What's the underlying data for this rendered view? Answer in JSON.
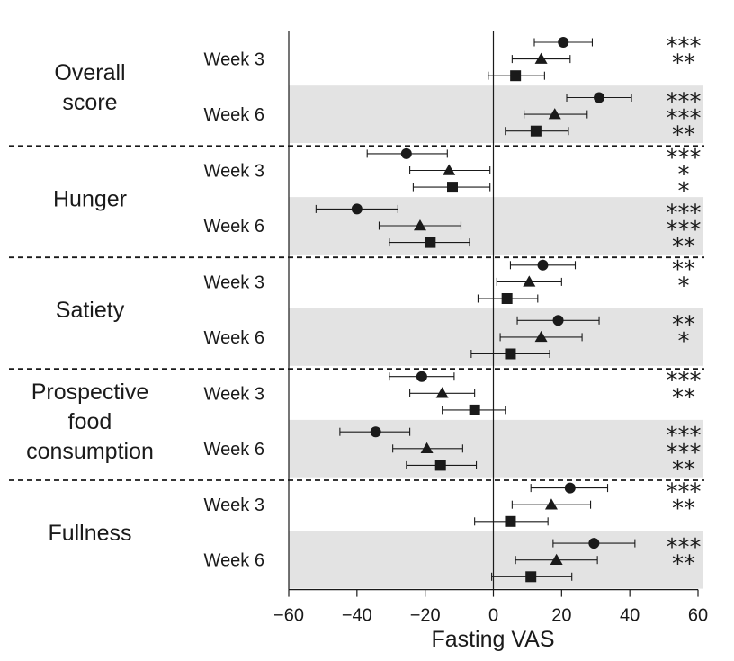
{
  "chart_data": {
    "type": "forest",
    "xlabel": "Fasting VAS",
    "xlim": [
      -60,
      60
    ],
    "xticks": [
      -60,
      -40,
      -20,
      0,
      20,
      40,
      60
    ],
    "xtick_labels": [
      "−60",
      "−40",
      "−20",
      "0",
      "20",
      "40",
      "60"
    ],
    "markers": [
      "circle",
      "triangle",
      "square"
    ],
    "groups": [
      {
        "label_lines": [
          "Overall",
          "score"
        ],
        "weeks": [
          {
            "label": "Week 3",
            "shaded": false,
            "rows": [
              {
                "marker": "circle",
                "est": 20.5,
                "lo": 12,
                "hi": 29,
                "stars": "***"
              },
              {
                "marker": "triangle",
                "est": 14,
                "lo": 5.5,
                "hi": 22.5,
                "stars": "**"
              },
              {
                "marker": "square",
                "est": 6.5,
                "lo": -1.5,
                "hi": 15,
                "stars": ""
              }
            ]
          },
          {
            "label": "Week 6",
            "shaded": true,
            "rows": [
              {
                "marker": "circle",
                "est": 31,
                "lo": 21.5,
                "hi": 40.5,
                "stars": "***"
              },
              {
                "marker": "triangle",
                "est": 18,
                "lo": 9,
                "hi": 27.5,
                "stars": "***"
              },
              {
                "marker": "square",
                "est": 12.5,
                "lo": 3.5,
                "hi": 22,
                "stars": "**"
              }
            ]
          }
        ]
      },
      {
        "label_lines": [
          "Hunger"
        ],
        "weeks": [
          {
            "label": "Week 3",
            "shaded": false,
            "rows": [
              {
                "marker": "circle",
                "est": -25.5,
                "lo": -37,
                "hi": -13.5,
                "stars": "***"
              },
              {
                "marker": "triangle",
                "est": -13,
                "lo": -24.5,
                "hi": -1,
                "stars": "*"
              },
              {
                "marker": "square",
                "est": -12,
                "lo": -23.5,
                "hi": -1,
                "stars": "*"
              }
            ]
          },
          {
            "label": "Week 6",
            "shaded": true,
            "rows": [
              {
                "marker": "circle",
                "est": -40,
                "lo": -52,
                "hi": -28,
                "stars": "***"
              },
              {
                "marker": "triangle",
                "est": -21.5,
                "lo": -33.5,
                "hi": -9.5,
                "stars": "***"
              },
              {
                "marker": "square",
                "est": -18.5,
                "lo": -30.5,
                "hi": -7,
                "stars": "**"
              }
            ]
          }
        ]
      },
      {
        "label_lines": [
          "Satiety"
        ],
        "weeks": [
          {
            "label": "Week 3",
            "shaded": false,
            "rows": [
              {
                "marker": "circle",
                "est": 14.5,
                "lo": 5,
                "hi": 24,
                "stars": "**"
              },
              {
                "marker": "triangle",
                "est": 10.5,
                "lo": 1,
                "hi": 20,
                "stars": "*"
              },
              {
                "marker": "square",
                "est": 4,
                "lo": -4.5,
                "hi": 13,
                "stars": ""
              }
            ]
          },
          {
            "label": "Week 6",
            "shaded": true,
            "rows": [
              {
                "marker": "circle",
                "est": 19,
                "lo": 7,
                "hi": 31,
                "stars": "**"
              },
              {
                "marker": "triangle",
                "est": 14,
                "lo": 2,
                "hi": 26,
                "stars": "*"
              },
              {
                "marker": "square",
                "est": 5,
                "lo": -6.5,
                "hi": 16.5,
                "stars": ""
              }
            ]
          }
        ]
      },
      {
        "label_lines": [
          "Prospective",
          "food",
          "consumption"
        ],
        "weeks": [
          {
            "label": "Week 3",
            "shaded": false,
            "rows": [
              {
                "marker": "circle",
                "est": -21,
                "lo": -30.5,
                "hi": -11.5,
                "stars": "***"
              },
              {
                "marker": "triangle",
                "est": -15,
                "lo": -24.5,
                "hi": -5.5,
                "stars": "**"
              },
              {
                "marker": "square",
                "est": -5.5,
                "lo": -15,
                "hi": 3.5,
                "stars": ""
              }
            ]
          },
          {
            "label": "Week 6",
            "shaded": true,
            "rows": [
              {
                "marker": "circle",
                "est": -34.5,
                "lo": -45,
                "hi": -24.5,
                "stars": "***"
              },
              {
                "marker": "triangle",
                "est": -19.5,
                "lo": -29.5,
                "hi": -9,
                "stars": "***"
              },
              {
                "marker": "square",
                "est": -15.5,
                "lo": -25.5,
                "hi": -5,
                "stars": "**"
              }
            ]
          }
        ]
      },
      {
        "label_lines": [
          "Fullness"
        ],
        "weeks": [
          {
            "label": "Week 3",
            "shaded": false,
            "rows": [
              {
                "marker": "circle",
                "est": 22.5,
                "lo": 11,
                "hi": 33.5,
                "stars": "***"
              },
              {
                "marker": "triangle",
                "est": 17,
                "lo": 5.5,
                "hi": 28.5,
                "stars": "**"
              },
              {
                "marker": "square",
                "est": 5,
                "lo": -5.5,
                "hi": 16,
                "stars": ""
              }
            ]
          },
          {
            "label": "Week 6",
            "shaded": true,
            "rows": [
              {
                "marker": "circle",
                "est": 29.5,
                "lo": 17.5,
                "hi": 41.5,
                "stars": "***"
              },
              {
                "marker": "triangle",
                "est": 18.5,
                "lo": 6.5,
                "hi": 30.5,
                "stars": "**"
              },
              {
                "marker": "square",
                "est": 11,
                "lo": -0.5,
                "hi": 23,
                "stars": ""
              }
            ]
          }
        ]
      }
    ]
  }
}
